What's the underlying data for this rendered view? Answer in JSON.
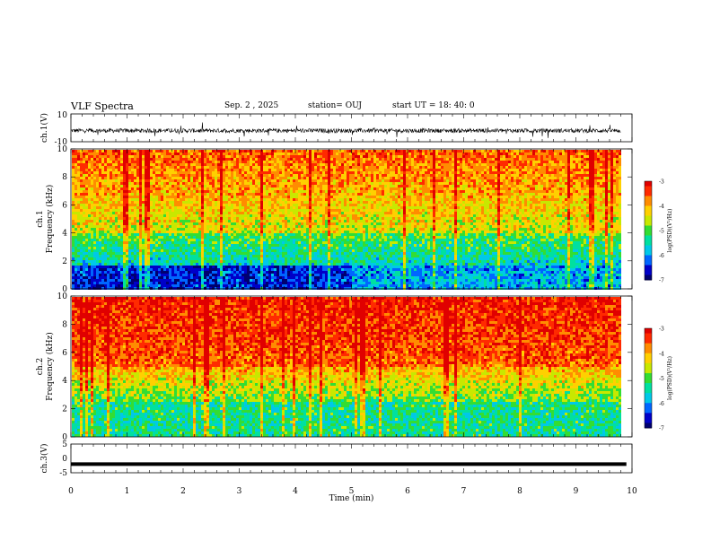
{
  "header": {
    "title": "VLF Spectra",
    "date": "Sep. 2 , 2025",
    "station": "station= OUJ",
    "start_ut": "start UT = 18: 40: 0"
  },
  "chart_data": [
    {
      "type": "line",
      "panel": "ch1-waveform",
      "ylabel": "ch.1(V)",
      "ylim": [
        -10,
        10
      ],
      "yticks": [
        "10",
        "-10"
      ],
      "xlim": [
        0,
        10
      ],
      "series_color": "#000000",
      "baseline": -2,
      "noise_amplitude": 3
    },
    {
      "type": "heatmap",
      "panel": "ch1-spectrogram",
      "ylabel": "ch.1 Frequency (kHz)",
      "ylabel_lines": [
        "ch.1",
        "Frequency (kHz)"
      ],
      "ylim": [
        0,
        10
      ],
      "yticks": [
        "0",
        "2",
        "4",
        "6",
        "8",
        "10"
      ],
      "xlim": [
        0,
        10
      ],
      "data_extent_min": 9.8,
      "colorbar": {
        "label": "log(PSD)(V²/Hz)",
        "range": [
          -7,
          -3
        ],
        "ticks": [
          "-3",
          "-4",
          "-5",
          "-6",
          "-7"
        ]
      },
      "notes": "dark blue band below ~2 kHz, cyan/green 2-4 kHz, yellow/red above"
    },
    {
      "type": "heatmap",
      "panel": "ch2-spectrogram",
      "ylabel": "ch.2 Frequency (kHz)",
      "ylabel_lines": [
        "ch.2",
        "Frequency (kHz)"
      ],
      "ylim": [
        0,
        10
      ],
      "yticks": [
        "0",
        "2",
        "4",
        "6",
        "8",
        "10"
      ],
      "xlim": [
        0,
        10
      ],
      "data_extent_min": 9.8,
      "colorbar": {
        "label": "log(PSD)(V²/Hz)",
        "range": [
          -7,
          -3
        ],
        "ticks": [
          "-3",
          "-4",
          "-5",
          "-6",
          "-7"
        ]
      },
      "notes": "mostly red above ~5 kHz, green/cyan below"
    },
    {
      "type": "line",
      "panel": "ch3-waveform",
      "ylabel": "ch.3(V)",
      "ylim": [
        -5,
        5
      ],
      "yticks": [
        "5",
        "0",
        "-5"
      ],
      "xlim": [
        0,
        10
      ],
      "series_color": "#000000",
      "constant_value": -2
    }
  ],
  "xaxis": {
    "label": "Time (min)",
    "ticks": [
      "0",
      "1",
      "2",
      "3",
      "4",
      "5",
      "6",
      "7",
      "8",
      "9",
      "10"
    ]
  },
  "colorbar_palette": [
    "#e00000",
    "#ff2a00",
    "#ff8c00",
    "#ffd000",
    "#c8e800",
    "#33dd33",
    "#00e0a0",
    "#00c8e8",
    "#0066ff",
    "#0000c8",
    "#000070"
  ]
}
